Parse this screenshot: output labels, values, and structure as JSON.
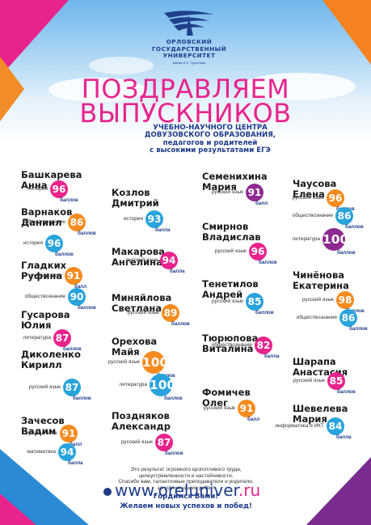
{
  "header": {
    "uni_line1": "ОРЛОВСКИЙ",
    "uni_line2": "ГОСУДАРСТВЕННЫЙ",
    "uni_line3": "УНИВЕРСИТЕТ",
    "uni_sub": "имени И.С. Тургенева",
    "title1": "ПОЗДРАВЛЯЕМ",
    "title2": "ВЫПУСКНИКОВ",
    "sub1": "УЧЕБНО-НАУЧНОГО ЦЕНТРА",
    "sub2": "ДОВУЗОВСКОГО ОБРАЗОВАНИЯ,",
    "sub3": "педагогов и родителей",
    "sub4": "с высокими результатами ЕГЭ"
  },
  "points_label": "баллов",
  "point_label": "балл",
  "colors": {
    "pink": "#e8248c",
    "orange": "#f58b1f",
    "blue": "#29a3dc",
    "purple": "#8e2a8f",
    "navy": "#1e3c8a"
  },
  "students": [
    {
      "name": [
        "Башкарева",
        "Анна"
      ],
      "scores": [
        {
          "subject": "история",
          "score": "96",
          "color": "pink",
          "label": "баллов"
        }
      ]
    },
    {
      "name": [
        "Варнаков",
        "Даниил"
      ],
      "scores": [
        {
          "subject": "обществознание",
          "score": "86",
          "color": "orange",
          "label": "баллов"
        },
        {
          "subject": "история",
          "score": "96",
          "color": "blue",
          "label": "баллов"
        }
      ]
    },
    {
      "name": [
        "Гладких",
        "Руфина"
      ],
      "scores": [
        {
          "subject": "русский язык",
          "score": "91",
          "color": "orange",
          "label": "балл"
        },
        {
          "subject": "обществознание",
          "score": "90",
          "color": "blue",
          "label": "баллов"
        }
      ]
    },
    {
      "name": [
        "Гусарова",
        "Юлия"
      ],
      "scores": [
        {
          "subject": "литература",
          "score": "87",
          "color": "pink",
          "label": "баллов"
        }
      ]
    },
    {
      "name": [
        "Диколенко",
        "Кирилл"
      ],
      "scores": [
        {
          "subject": "русский язык",
          "score": "87",
          "color": "blue",
          "label": "баллов"
        }
      ]
    },
    {
      "name": [
        "Зачесов",
        "Вадим"
      ],
      "scores": [
        {
          "subject": "русский язык",
          "score": "91",
          "color": "orange",
          "label": "балл"
        },
        {
          "subject": "математика",
          "score": "94",
          "color": "blue",
          "label": "балла"
        }
      ]
    },
    {
      "name": [
        "Козлов",
        "Дмитрий"
      ],
      "scores": [
        {
          "subject": "история",
          "score": "93",
          "color": "blue",
          "label": "балла"
        }
      ]
    },
    {
      "name": [
        "Макарова",
        "Ангелина"
      ],
      "scores": [
        {
          "subject": "русский язык",
          "score": "94",
          "color": "pink",
          "label": "балла"
        }
      ]
    },
    {
      "name": [
        "Миняйлова",
        "Светлана"
      ],
      "scores": [
        {
          "subject": "русский язык",
          "score": "89",
          "color": "orange",
          "label": "баллов"
        }
      ]
    },
    {
      "name": [
        "Орехова",
        "Майя"
      ],
      "scores": [
        {
          "subject": "русский язык",
          "score": "100",
          "color": "orange",
          "label": "баллов"
        },
        {
          "subject": "литература",
          "score": "100",
          "color": "blue",
          "label": "баллов"
        }
      ]
    },
    {
      "name": [
        "Поздняков",
        "Александр"
      ],
      "scores": [
        {
          "subject": "русский язык",
          "score": "87",
          "color": "pink",
          "label": "баллов"
        }
      ]
    },
    {
      "name": [
        "Семенихина",
        "Мария"
      ],
      "scores": [
        {
          "subject": "русский язык",
          "score": "91",
          "color": "purple",
          "label": "балл"
        }
      ]
    },
    {
      "name": [
        "Смирнов",
        "Владислав"
      ],
      "scores": [
        {
          "subject": "русский язык",
          "score": "96",
          "color": "pink",
          "label": "баллов"
        }
      ]
    },
    {
      "name": [
        "Тенетилов",
        "Андрей"
      ],
      "scores": [
        {
          "subject": "русский язык",
          "score": "85",
          "color": "blue",
          "label": "баллов"
        }
      ]
    },
    {
      "name": [
        "Тюрюпова",
        "Виталина"
      ],
      "scores": [
        {
          "subject": "обществознание",
          "score": "82",
          "color": "pink",
          "label": "балла"
        }
      ]
    },
    {
      "name": [
        "Фомичев",
        "Олег"
      ],
      "scores": [
        {
          "subject": "русский язык",
          "score": "91",
          "color": "orange",
          "label": "балл"
        }
      ]
    },
    {
      "name": [
        "Чаусова",
        "Елена"
      ],
      "scores": [
        {
          "subject": "русский язык",
          "score": "96",
          "color": "orange",
          "label": "баллов"
        },
        {
          "subject": "обществознание",
          "score": "86",
          "color": "blue",
          "label": "баллов"
        },
        {
          "subject": "литература",
          "score": "100",
          "color": "purple",
          "label": "баллов"
        }
      ]
    },
    {
      "name": [
        "Чинёнова",
        "Екатерина"
      ],
      "scores": [
        {
          "subject": "русский язык",
          "score": "98",
          "color": "orange",
          "label": "баллов"
        },
        {
          "subject": "обществознание",
          "score": "86",
          "color": "blue",
          "label": "баллов"
        }
      ]
    },
    {
      "name": [
        "Шарапа",
        "Анастасия"
      ],
      "scores": [
        {
          "subject": "русский язык",
          "score": "85",
          "color": "pink",
          "label": "баллов"
        }
      ]
    },
    {
      "name": [
        "Шевелева",
        "Мария"
      ],
      "scores": [
        {
          "subject": "информатика и ИКТ",
          "score": "84",
          "color": "blue",
          "label": "балла"
        }
      ]
    }
  ],
  "footer": {
    "msg1": "Это результат огромного кропотливого труда,",
    "msg2": "целеустремленности и настойчивости.",
    "msg3": "Спасибо вам, талантливые преподаватели и родители,",
    "msg4": "за успехи наших ребят!",
    "proud1": "Гордимся Вами!",
    "proud2": "Желаем новых успехов и побед!",
    "web_main": "www.oreluniver",
    "web_tld": ".ru"
  }
}
